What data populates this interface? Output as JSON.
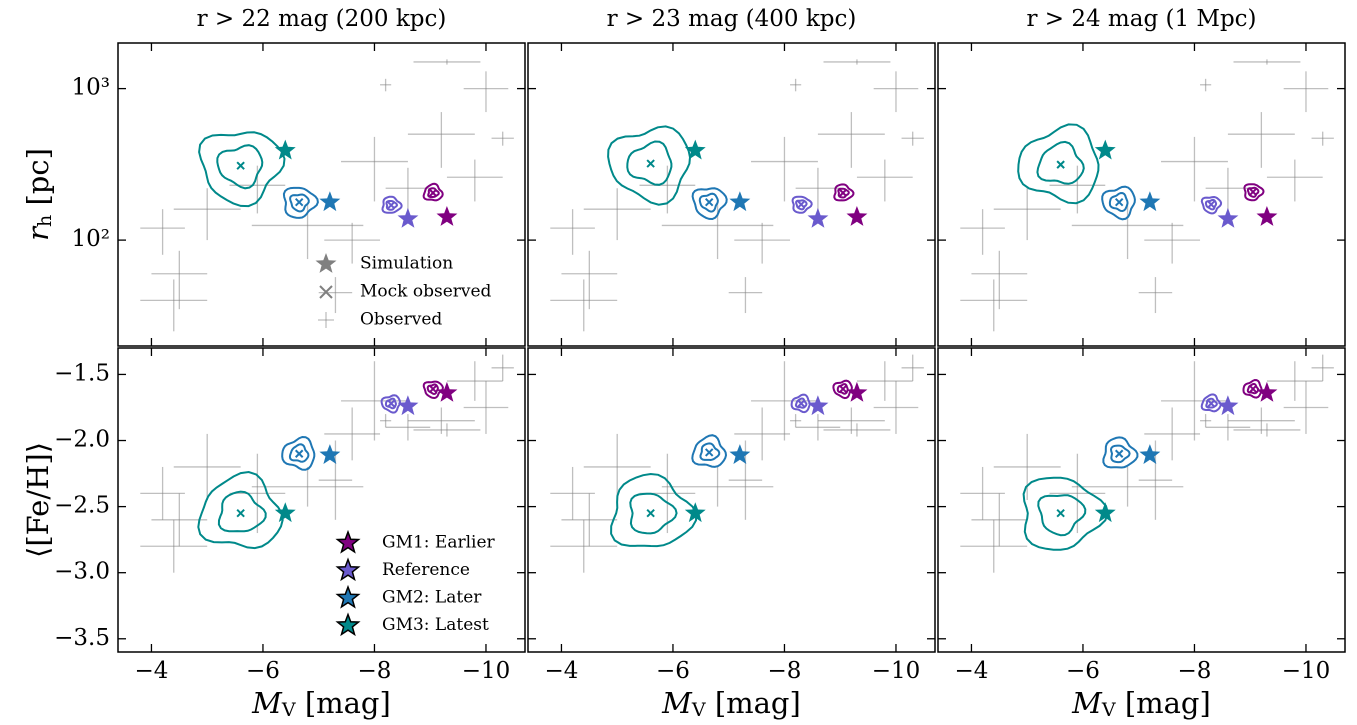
{
  "chart_data": [
    {
      "type": "scatter",
      "title": "r > 22 mag (200 kpc)",
      "ylabel": [
        "r",
        "h",
        " [pc]"
      ],
      "log_y": true,
      "xlim": [
        -3.4,
        -10.7
      ],
      "ylim": [
        20,
        2000
      ],
      "yticks": [
        {
          "value": 100,
          "label": "10²"
        },
        {
          "value": 1000,
          "label": "10³"
        }
      ],
      "legend_entries": [
        {
          "name": "Simulation",
          "marker": "star",
          "color": "#808080"
        },
        {
          "name": "Mock observed",
          "marker": "x",
          "color": "#808080"
        },
        {
          "name": "Observed",
          "marker": "errorbar",
          "color": "#808080"
        }
      ],
      "series": [
        {
          "marker": "star",
          "color": "#800080",
          "x": [
            -9.3
          ],
          "values": [
            142
          ]
        },
        {
          "marker": "star",
          "color": "#6a5acd",
          "x": [
            -8.6
          ],
          "values": [
            138
          ]
        },
        {
          "marker": "star",
          "color": "#1f77b4",
          "x": [
            -7.2
          ],
          "values": [
            178
          ]
        },
        {
          "marker": "star",
          "color": "#00898a",
          "x": [
            -6.4
          ],
          "values": [
            390
          ]
        },
        {
          "marker": "x",
          "colors": [
            "#800080",
            "#6a5acd",
            "#1f77b4",
            "#00898a"
          ],
          "x": [
            -9.05,
            -8.3,
            -6.65,
            -5.6
          ],
          "values": [
            205,
            170,
            178,
            310
          ]
        },
        {
          "marker": "errorbar",
          "color": "#808080",
          "x": [
            -4.2,
            -5.0,
            -4.5,
            -5.9,
            -6.8,
            -7.6,
            -8.0,
            -8.6,
            -9.2,
            -9.8,
            -10.0,
            -8.2,
            -9.3,
            -4.4,
            -7.3,
            -10.3
          ],
          "values": [
            120,
            160,
            60,
            230,
            125,
            100,
            330,
            220,
            500,
            260,
            1000,
            1060,
            1500,
            40,
            45,
            470
          ],
          "xerr": [
            0.4,
            0.6,
            0.5,
            0.5,
            1.0,
            0.5,
            0.6,
            0.4,
            0.6,
            0.5,
            0.4,
            0.1,
            0.6,
            0.6,
            0.3,
            0.2
          ],
          "yerr": [
            40,
            60,
            25,
            80,
            50,
            30,
            150,
            80,
            200,
            80,
            300,
            100,
            60,
            15,
            12,
            50
          ]
        }
      ]
    },
    {
      "type": "scatter",
      "title": "r > 23 mag (400 kpc)",
      "log_y": true,
      "xlim": [
        -3.4,
        -10.7
      ],
      "ylim": [
        20,
        2000
      ],
      "series": [
        {
          "marker": "star",
          "color": "#800080",
          "x": [
            -9.3
          ],
          "values": [
            142
          ]
        },
        {
          "marker": "star",
          "color": "#6a5acd",
          "x": [
            -8.6
          ],
          "values": [
            138
          ]
        },
        {
          "marker": "star",
          "color": "#1f77b4",
          "x": [
            -7.2
          ],
          "values": [
            178
          ]
        },
        {
          "marker": "star",
          "color": "#00898a",
          "x": [
            -6.4
          ],
          "values": [
            390
          ]
        },
        {
          "marker": "x",
          "colors": [
            "#800080",
            "#6a5acd",
            "#1f77b4",
            "#00898a"
          ],
          "x": [
            -9.05,
            -8.3,
            -6.65,
            -5.6
          ],
          "values": [
            205,
            172,
            178,
            320
          ]
        },
        {
          "marker": "errorbar",
          "color": "#808080",
          "x": [
            -4.2,
            -5.0,
            -4.5,
            -5.9,
            -6.8,
            -7.6,
            -8.0,
            -8.6,
            -9.2,
            -9.8,
            -10.0,
            -8.2,
            -9.3,
            -4.4,
            -7.3,
            -10.3
          ],
          "values": [
            120,
            160,
            60,
            230,
            125,
            100,
            330,
            220,
            500,
            260,
            1000,
            1060,
            1500,
            40,
            45,
            470
          ],
          "xerr": [
            0.4,
            0.6,
            0.5,
            0.5,
            1.0,
            0.5,
            0.6,
            0.4,
            0.6,
            0.5,
            0.4,
            0.1,
            0.6,
            0.6,
            0.3,
            0.2
          ],
          "yerr": [
            40,
            60,
            25,
            80,
            50,
            30,
            150,
            80,
            200,
            80,
            300,
            100,
            60,
            15,
            12,
            50
          ]
        }
      ]
    },
    {
      "type": "scatter",
      "title": "r > 24 mag (1 Mpc)",
      "log_y": true,
      "xlim": [
        -3.4,
        -10.7
      ],
      "ylim": [
        20,
        2000
      ],
      "series": [
        {
          "marker": "star",
          "color": "#800080",
          "x": [
            -9.3
          ],
          "values": [
            142
          ]
        },
        {
          "marker": "star",
          "color": "#6a5acd",
          "x": [
            -8.6
          ],
          "values": [
            138
          ]
        },
        {
          "marker": "star",
          "color": "#1f77b4",
          "x": [
            -7.2
          ],
          "values": [
            178
          ]
        },
        {
          "marker": "star",
          "color": "#00898a",
          "x": [
            -6.4
          ],
          "values": [
            390
          ]
        },
        {
          "marker": "x",
          "colors": [
            "#800080",
            "#6a5acd",
            "#1f77b4",
            "#00898a"
          ],
          "x": [
            -9.05,
            -8.3,
            -6.65,
            -5.6
          ],
          "values": [
            208,
            172,
            178,
            315
          ]
        },
        {
          "marker": "errorbar",
          "color": "#808080",
          "x": [
            -4.2,
            -5.0,
            -4.5,
            -5.9,
            -6.8,
            -7.6,
            -8.0,
            -8.6,
            -9.2,
            -9.8,
            -10.0,
            -8.2,
            -9.3,
            -4.4,
            -7.3,
            -10.3
          ],
          "values": [
            120,
            160,
            60,
            230,
            125,
            100,
            330,
            220,
            500,
            260,
            1000,
            1060,
            1500,
            40,
            45,
            470
          ],
          "xerr": [
            0.4,
            0.6,
            0.5,
            0.5,
            1.0,
            0.5,
            0.6,
            0.4,
            0.6,
            0.5,
            0.4,
            0.1,
            0.6,
            0.6,
            0.3,
            0.2
          ],
          "yerr": [
            40,
            60,
            25,
            80,
            50,
            30,
            150,
            80,
            200,
            80,
            300,
            100,
            60,
            15,
            12,
            50
          ]
        }
      ]
    },
    {
      "type": "scatter",
      "xlabel": [
        "M",
        "V",
        " [mag]"
      ],
      "ylabel": [
        "⟨[Fe/H]⟩"
      ],
      "xlim": [
        -3.4,
        -10.7
      ],
      "ylim": [
        -3.6,
        -1.3
      ],
      "xticks": [
        {
          "value": -4,
          "label": "−4"
        },
        {
          "value": -6,
          "label": "−6"
        },
        {
          "value": -8,
          "label": "−8"
        },
        {
          "value": -10,
          "label": "−10"
        }
      ],
      "yticks": [
        {
          "value": -1.5,
          "label": "−1.5"
        },
        {
          "value": -2.0,
          "label": "−2.0"
        },
        {
          "value": -2.5,
          "label": "−2.5"
        },
        {
          "value": -3.0,
          "label": "−3.0"
        },
        {
          "value": -3.5,
          "label": "−3.5"
        }
      ],
      "legend": "lower right",
      "series": [
        {
          "name": "GM1: Earlier",
          "marker": "star",
          "color": "#800080",
          "x": [
            -9.3
          ],
          "values": [
            -1.64
          ]
        },
        {
          "name": "Reference",
          "marker": "star",
          "color": "#6a5acd",
          "x": [
            -8.6
          ],
          "values": [
            -1.74
          ]
        },
        {
          "name": "GM2: Later",
          "marker": "star",
          "color": "#1f77b4",
          "x": [
            -7.2
          ],
          "values": [
            -2.11
          ]
        },
        {
          "name": "GM3: Latest",
          "marker": "star",
          "color": "#00898a",
          "x": [
            -6.4
          ],
          "values": [
            -2.55
          ]
        },
        {
          "marker": "x",
          "colors": [
            "#800080",
            "#6a5acd",
            "#1f77b4",
            "#00898a"
          ],
          "x": [
            -9.05,
            -8.3,
            -6.65,
            -5.6
          ],
          "values": [
            -1.61,
            -1.72,
            -2.1,
            -2.55
          ]
        },
        {
          "marker": "errorbar",
          "color": "#808080",
          "x": [
            -4.2,
            -5.0,
            -4.5,
            -5.9,
            -6.8,
            -7.6,
            -8.0,
            -8.6,
            -9.2,
            -9.8,
            -10.0,
            -8.2,
            -9.3,
            -4.4,
            -7.3,
            -10.3
          ],
          "values": [
            -2.4,
            -2.2,
            -2.6,
            -2.4,
            -2.35,
            -1.95,
            -1.7,
            -1.9,
            -1.85,
            -1.55,
            -1.75,
            -1.85,
            -1.92,
            -2.8,
            -2.3,
            -1.45
          ],
          "xerr": [
            0.4,
            0.6,
            0.5,
            0.5,
            1.0,
            0.5,
            0.6,
            0.4,
            0.6,
            0.5,
            0.4,
            0.1,
            0.6,
            0.6,
            0.3,
            0.2
          ],
          "yerr": [
            0.2,
            0.25,
            0.2,
            0.3,
            0.15,
            0.2,
            0.3,
            0.1,
            0.1,
            0.15,
            0.2,
            0.05,
            0.05,
            0.2,
            0.3,
            0.1
          ]
        }
      ]
    },
    {
      "type": "scatter",
      "xlabel": [
        "M",
        "V",
        " [mag]"
      ],
      "xlim": [
        -3.4,
        -10.7
      ],
      "ylim": [
        -3.6,
        -1.3
      ],
      "xticks": [
        {
          "value": -4,
          "label": "−4"
        },
        {
          "value": -6,
          "label": "−6"
        },
        {
          "value": -8,
          "label": "−8"
        },
        {
          "value": -10,
          "label": "−10"
        }
      ],
      "series": [
        {
          "marker": "star",
          "color": "#800080",
          "x": [
            -9.3
          ],
          "values": [
            -1.64
          ]
        },
        {
          "marker": "star",
          "color": "#6a5acd",
          "x": [
            -8.6
          ],
          "values": [
            -1.74
          ]
        },
        {
          "marker": "star",
          "color": "#1f77b4",
          "x": [
            -7.2
          ],
          "values": [
            -2.11
          ]
        },
        {
          "marker": "star",
          "color": "#00898a",
          "x": [
            -6.4
          ],
          "values": [
            -2.55
          ]
        },
        {
          "marker": "x",
          "colors": [
            "#800080",
            "#6a5acd",
            "#1f77b4",
            "#00898a"
          ],
          "x": [
            -9.05,
            -8.3,
            -6.65,
            -5.6
          ],
          "values": [
            -1.61,
            -1.72,
            -2.09,
            -2.55
          ]
        },
        {
          "marker": "errorbar",
          "color": "#808080",
          "x": [
            -4.2,
            -5.0,
            -4.5,
            -5.9,
            -6.8,
            -7.6,
            -8.0,
            -8.6,
            -9.2,
            -9.8,
            -10.0,
            -8.2,
            -9.3,
            -4.4,
            -7.3,
            -10.3
          ],
          "values": [
            -2.4,
            -2.2,
            -2.6,
            -2.4,
            -2.35,
            -1.95,
            -1.7,
            -1.9,
            -1.85,
            -1.55,
            -1.75,
            -1.85,
            -1.92,
            -2.8,
            -2.3,
            -1.45
          ],
          "xerr": [
            0.4,
            0.6,
            0.5,
            0.5,
            1.0,
            0.5,
            0.6,
            0.4,
            0.6,
            0.5,
            0.4,
            0.1,
            0.6,
            0.6,
            0.3,
            0.2
          ],
          "yerr": [
            0.2,
            0.25,
            0.2,
            0.3,
            0.15,
            0.2,
            0.3,
            0.1,
            0.1,
            0.15,
            0.2,
            0.05,
            0.05,
            0.2,
            0.3,
            0.1
          ]
        }
      ]
    },
    {
      "type": "scatter",
      "xlabel": [
        "M",
        "V",
        " [mag]"
      ],
      "xlim": [
        -3.4,
        -10.7
      ],
      "ylim": [
        -3.6,
        -1.3
      ],
      "xticks": [
        {
          "value": -4,
          "label": "−4"
        },
        {
          "value": -6,
          "label": "−6"
        },
        {
          "value": -8,
          "label": "−8"
        },
        {
          "value": -10,
          "label": "−10"
        }
      ],
      "series": [
        {
          "marker": "star",
          "color": "#800080",
          "x": [
            -9.3
          ],
          "values": [
            -1.64
          ]
        },
        {
          "marker": "star",
          "color": "#6a5acd",
          "x": [
            -8.6
          ],
          "values": [
            -1.74
          ]
        },
        {
          "marker": "star",
          "color": "#1f77b4",
          "x": [
            -7.2
          ],
          "values": [
            -2.11
          ]
        },
        {
          "marker": "star",
          "color": "#00898a",
          "x": [
            -6.4
          ],
          "values": [
            -2.55
          ]
        },
        {
          "marker": "x",
          "colors": [
            "#800080",
            "#6a5acd",
            "#1f77b4",
            "#00898a"
          ],
          "x": [
            -9.05,
            -8.3,
            -6.65,
            -5.6
          ],
          "values": [
            -1.61,
            -1.72,
            -2.1,
            -2.55
          ]
        },
        {
          "marker": "errorbar",
          "color": "#808080",
          "x": [
            -4.2,
            -5.0,
            -4.5,
            -5.9,
            -6.8,
            -7.6,
            -8.0,
            -8.6,
            -9.2,
            -9.8,
            -10.0,
            -8.2,
            -9.3,
            -4.4,
            -7.3,
            -10.3
          ],
          "values": [
            -2.4,
            -2.2,
            -2.6,
            -2.4,
            -2.35,
            -1.95,
            -1.7,
            -1.9,
            -1.85,
            -1.55,
            -1.75,
            -1.85,
            -1.92,
            -2.8,
            -2.3,
            -1.45
          ],
          "xerr": [
            0.4,
            0.6,
            0.5,
            0.5,
            1.0,
            0.5,
            0.6,
            0.4,
            0.6,
            0.5,
            0.4,
            0.1,
            0.6,
            0.6,
            0.3,
            0.2
          ],
          "yerr": [
            0.2,
            0.25,
            0.2,
            0.3,
            0.15,
            0.2,
            0.3,
            0.1,
            0.1,
            0.15,
            0.2,
            0.05,
            0.05,
            0.2,
            0.3,
            0.1
          ]
        }
      ]
    }
  ]
}
